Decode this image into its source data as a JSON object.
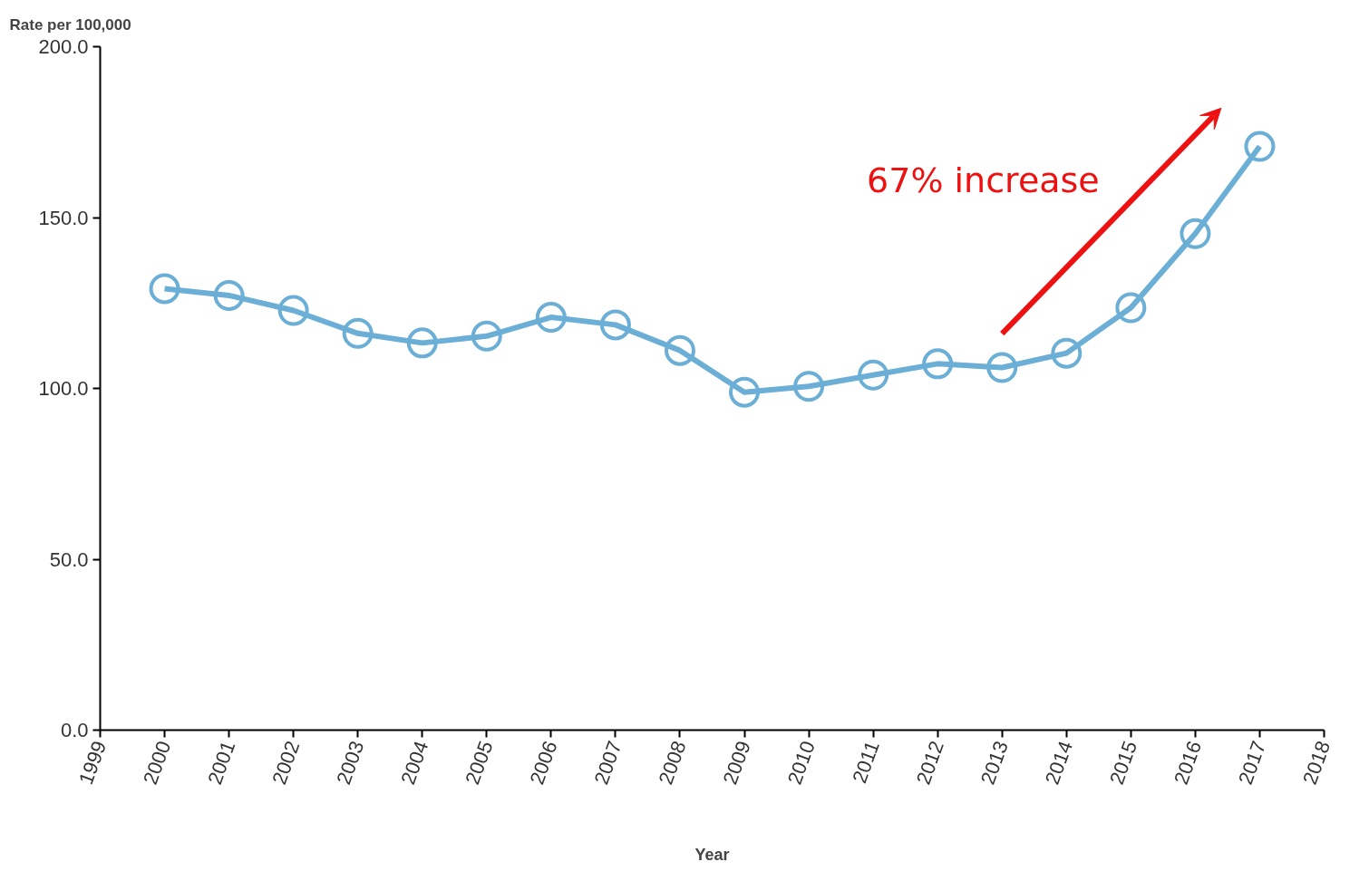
{
  "chart_data": {
    "type": "line",
    "ylabel": "Rate per 100,000",
    "xlabel": "Year",
    "x": [
      2000,
      2001,
      2002,
      2003,
      2004,
      2005,
      2006,
      2007,
      2008,
      2009,
      2010,
      2011,
      2012,
      2013,
      2014,
      2015,
      2016,
      2017
    ],
    "series": [
      {
        "color": "#6baed6",
        "values": [
          129.2,
          127.2,
          122.8,
          116.1,
          113.3,
          115.3,
          120.8,
          118.6,
          111.1,
          98.9,
          100.6,
          103.9,
          107.2,
          106.1,
          110.3,
          123.6,
          145.3,
          170.8
        ]
      }
    ],
    "xlim": [
      1999,
      2018
    ],
    "xticks": [
      1999,
      2000,
      2001,
      2002,
      2003,
      2004,
      2005,
      2006,
      2007,
      2008,
      2009,
      2010,
      2011,
      2012,
      2013,
      2014,
      2015,
      2016,
      2017,
      2018
    ],
    "ylim": [
      0,
      200
    ],
    "yticks": [
      {
        "value": 0,
        "label": "0.0"
      },
      {
        "value": 50,
        "label": "50.0"
      },
      {
        "value": 100,
        "label": "100.0"
      },
      {
        "value": 150,
        "label": "150.0"
      },
      {
        "value": 200,
        "label": "200.0"
      }
    ],
    "marker": "circle",
    "line_style": "solid",
    "grid": false,
    "annotations": [
      "67% increase"
    ]
  }
}
